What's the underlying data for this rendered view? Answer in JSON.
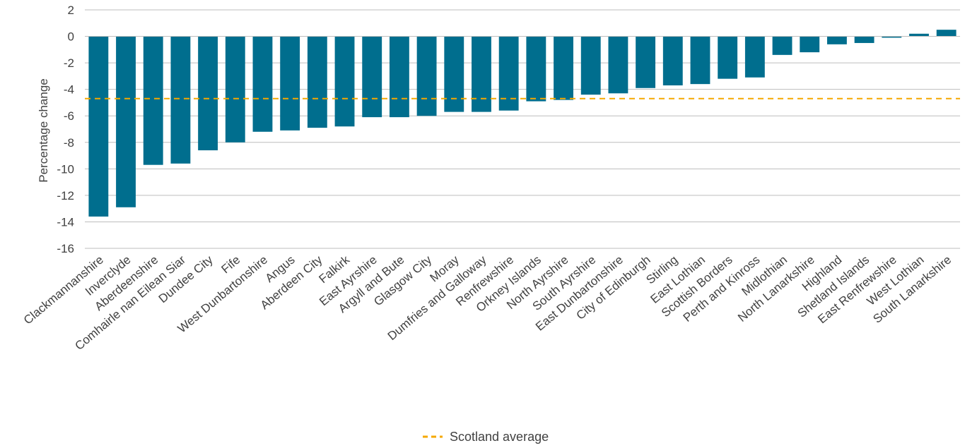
{
  "chart_data": {
    "type": "bar",
    "title": "",
    "xlabel": "",
    "ylabel": "Percentage change",
    "ylim": [
      -16,
      2
    ],
    "yticks": [
      2,
      0,
      -2,
      -4,
      -6,
      -8,
      -10,
      -12,
      -14,
      -16
    ],
    "grid": true,
    "legend_position": "bottom-center",
    "categories": [
      "Clackmannanshire",
      "Inverclyde",
      "Aberdeenshire",
      "Comhairle nan Eilean Siar",
      "Dundee City",
      "Fife",
      "West Dunbartonshire",
      "Angus",
      "Aberdeen City",
      "Falkirk",
      "East Ayrshire",
      "Argyll and Bute",
      "Glasgow City",
      "Moray",
      "Dumfries and Galloway",
      "Renfrewshire",
      "Orkney Islands",
      "North Ayrshire",
      "South Ayrshire",
      "East Dunbartonshire",
      "City of Edinburgh",
      "Stirling",
      "East Lothian",
      "Scottish Borders",
      "Perth and Kinross",
      "Midlothian",
      "North Lanarkshire",
      "Highland",
      "Shetland Islands",
      "East Renfrewshire",
      "West Lothian",
      "South Lanarkshire"
    ],
    "values": [
      -13.6,
      -12.9,
      -9.7,
      -9.6,
      -8.6,
      -8.0,
      -7.2,
      -7.1,
      -6.9,
      -6.8,
      -6.1,
      -6.1,
      -6.0,
      -5.7,
      -5.7,
      -5.6,
      -4.9,
      -4.8,
      -4.4,
      -4.3,
      -3.9,
      -3.7,
      -3.6,
      -3.2,
      -3.1,
      -1.4,
      -1.2,
      -0.6,
      -0.5,
      -0.1,
      0.2,
      0.5
    ],
    "reference_line": {
      "name": "Scotland average",
      "value": -4.7
    },
    "colors": {
      "bar": "#006e8e",
      "average": "#f5a800",
      "grid": "#bdbdbd",
      "text": "#414141"
    }
  }
}
